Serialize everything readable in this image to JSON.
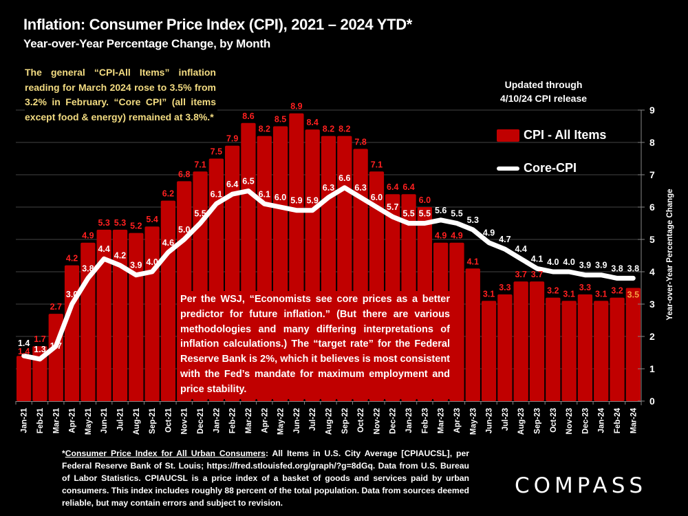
{
  "header": {
    "title": "Inflation: Consumer Price Index (CPI), 2021 – 2024 YTD*",
    "subtitle": "Year-over-Year Percentage Change, by Month"
  },
  "notes": {
    "top_left": "The general “CPI-All Items” inflation reading for March 2024 rose to 3.5% from 3.2% in February. “Core CPI” (all items except food & energy) remained at 3.8%.*",
    "updated_line1": "Updated through",
    "updated_line2": "4/10/24 CPI release",
    "wsj": "Per the WSJ, “Economists see core prices as a better predictor for future inflation.” (But there are various methodologies and many differing interpretations of inflation calculations.) The “target rate” for the Federal Reserve Bank is 2%, which it believes is most consistent with the Fed’s mandate for maximum employment and price stability."
  },
  "footnote": {
    "asterisk": "*",
    "link_text": "Consumer Price Index for All Urban Consumers",
    "body": ": All Items in U.S. City Average [CPIAUCSL], per Federal Reserve Bank of St. Louis; https://fred.stlouisfed.org/graph/?g=8dGq. Data from U.S. Bureau of Labor Statistics. CPIAUCSL is a price index of a basket of goods and services paid by urban consumers. This index includes roughly 88 percent of the total population. Data from sources deemed reliable, but may contain errors and subject to revision."
  },
  "logo": {
    "text": "COMPASS"
  },
  "colors": {
    "bar": "#c00000",
    "bar_label": "#ff2020",
    "last_bar_label": "#f5a040",
    "line": "#ffffff",
    "background": "#000000",
    "note_text": "#f3dc82"
  },
  "chart_data": {
    "type": "bar",
    "title": "Inflation: Consumer Price Index (CPI), 2021 – 2024 YTD*",
    "subtitle": "Year-over-Year Percentage Change, by Month",
    "xlabel": "",
    "ylabel": "Year-over-Year Percentage Change",
    "y_axis_side": "right",
    "ylim": [
      0,
      9
    ],
    "yticks": [
      0,
      1,
      2,
      3,
      4,
      5,
      6,
      7,
      8,
      9
    ],
    "grid": true,
    "legend_position": "top-right",
    "categories": [
      "Jan-21",
      "Feb-21",
      "Mar-21",
      "Apr-21",
      "May-21",
      "Jun-21",
      "Jul-21",
      "Aug-21",
      "Sep-21",
      "Oct-21",
      "Nov-21",
      "Dec-21",
      "Jan-22",
      "Feb-22",
      "Mar-22",
      "Apr-22",
      "May-22",
      "Jun-22",
      "Jul-22",
      "Aug-22",
      "Sep-22",
      "Oct-22",
      "Nov-22",
      "Dec-22",
      "Jan-23",
      "Feb-23",
      "Mar-23",
      "Apr-23",
      "May-23",
      "Jun-23",
      "Jul-23",
      "Aug-23",
      "Sep-23",
      "Oct-23",
      "Nov-23",
      "Dec-23",
      "Jan-24",
      "Feb-24",
      "Mar-24"
    ],
    "series": [
      {
        "name": "CPI - All Items",
        "type": "bar",
        "values": [
          1.4,
          1.7,
          2.7,
          4.2,
          4.9,
          5.3,
          5.3,
          5.2,
          5.4,
          6.2,
          6.8,
          7.1,
          7.5,
          7.9,
          8.6,
          8.2,
          8.5,
          8.9,
          8.4,
          8.2,
          8.2,
          7.8,
          7.1,
          6.4,
          6.4,
          6.0,
          4.9,
          4.9,
          4.1,
          3.1,
          3.3,
          3.7,
          3.7,
          3.2,
          3.1,
          3.3,
          3.1,
          3.2,
          3.5
        ]
      },
      {
        "name": "Core-CPI",
        "type": "line",
        "values": [
          1.4,
          1.3,
          1.7,
          3.0,
          3.8,
          4.4,
          4.2,
          3.9,
          4.0,
          4.6,
          5.0,
          5.5,
          6.1,
          6.4,
          6.5,
          6.1,
          6.0,
          5.9,
          5.9,
          6.3,
          6.6,
          6.3,
          6.0,
          5.7,
          5.5,
          5.5,
          5.6,
          5.5,
          5.3,
          4.9,
          4.7,
          4.4,
          4.1,
          4.0,
          4.0,
          3.9,
          3.9,
          3.8,
          3.8
        ]
      }
    ]
  }
}
